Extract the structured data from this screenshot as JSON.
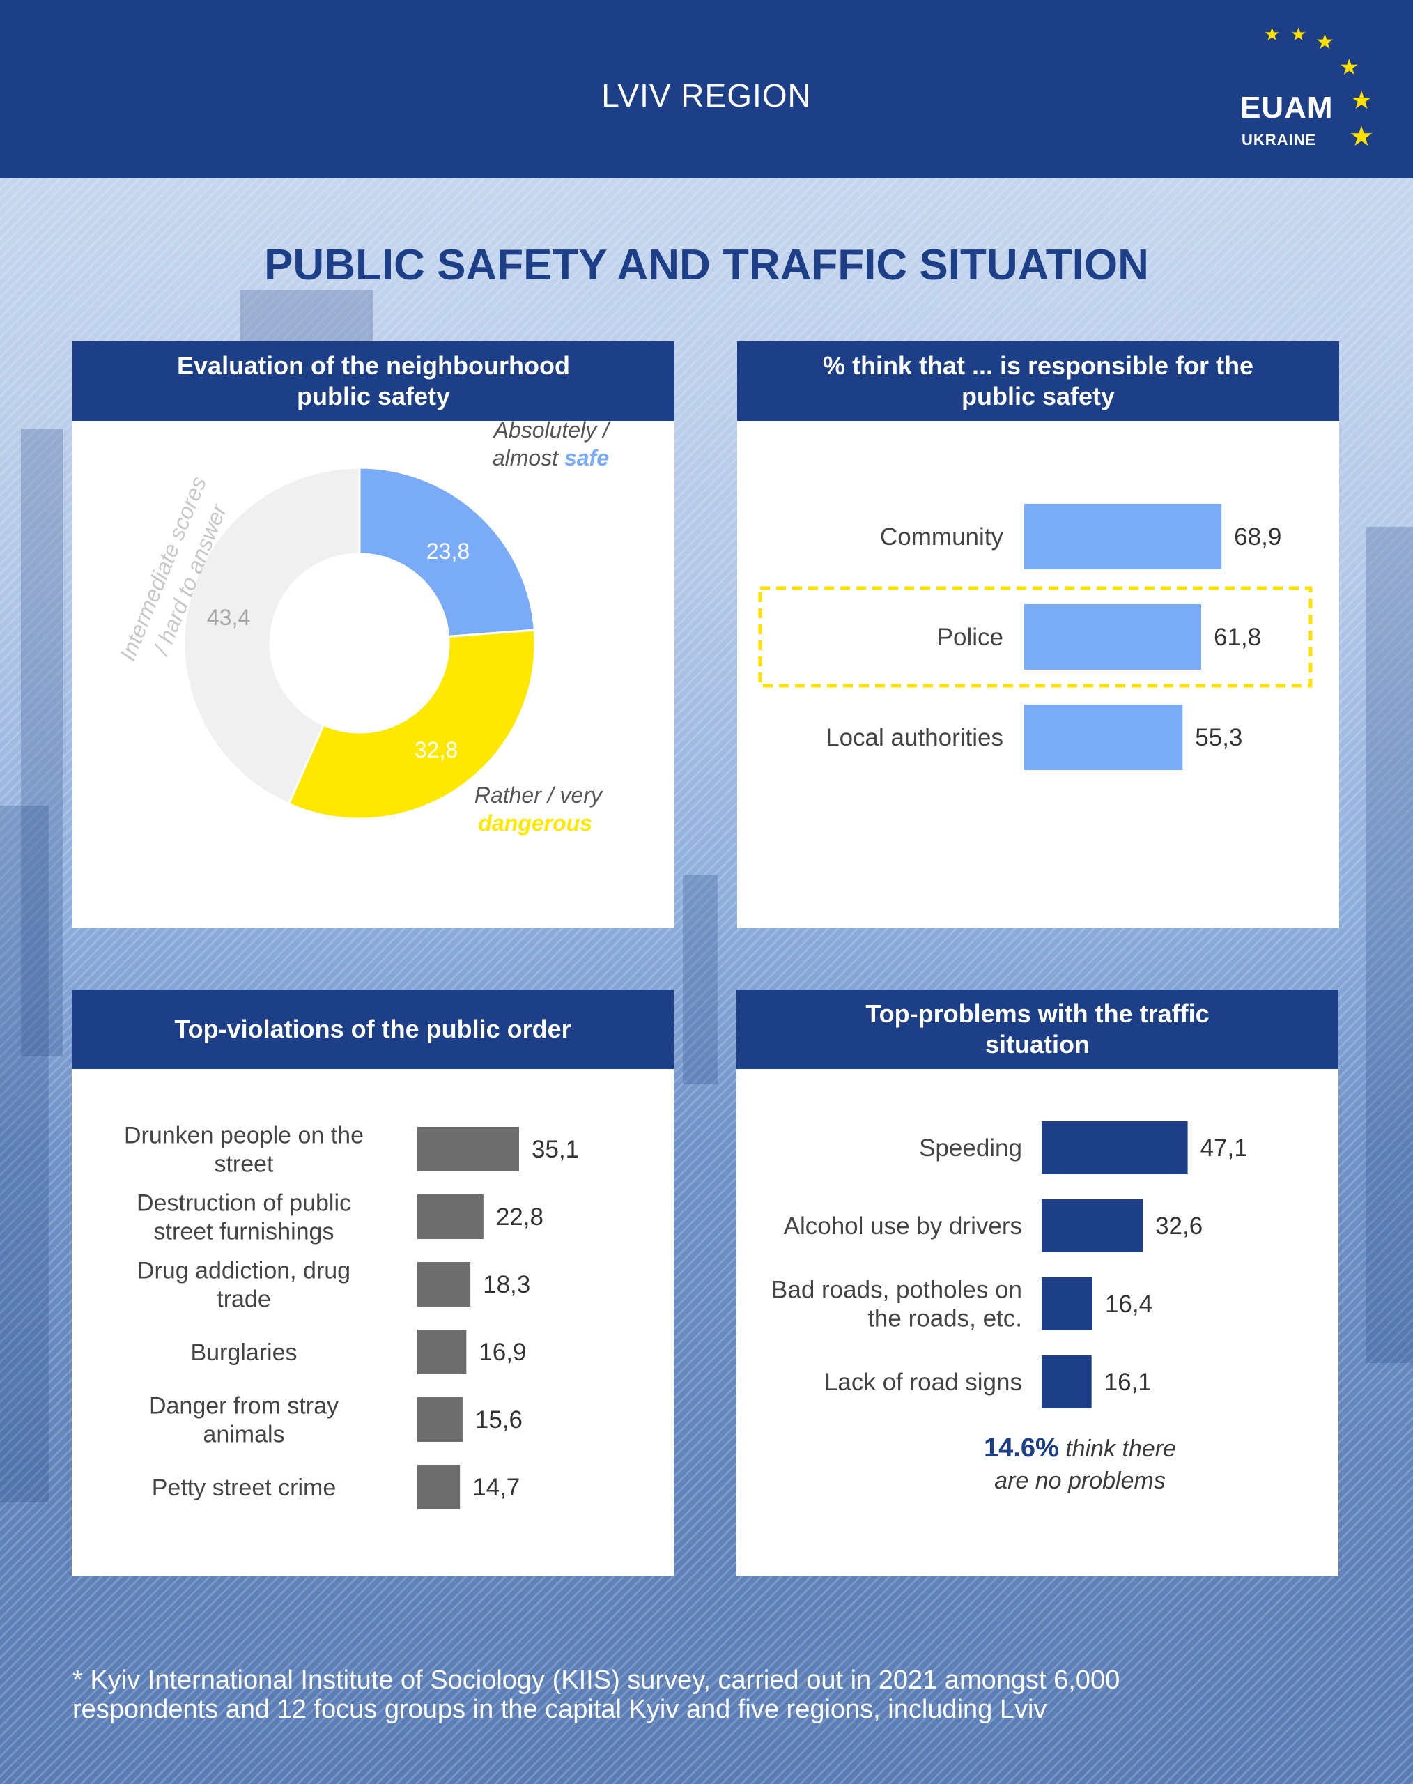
{
  "header": {
    "region": "LVIV REGION",
    "logo": {
      "brand": "EUAM",
      "sub": "UKRAINE"
    }
  },
  "title": "PUBLIC SAFETY AND TRAFFIC SITUATION",
  "colors": {
    "navy": "#1d3f87",
    "light_blue": "#7aabf7",
    "yellow": "#ffe800",
    "light_gray": "#f0f0f0",
    "gray_bar": "#6d6d6d",
    "highlight_border": "#ffe000"
  },
  "panels": {
    "safety": {
      "title_line1": "Evaluation of the neighbourhood",
      "title_line2": "public safety"
    },
    "responsible": {
      "title_line1": "% think that ... is responsible for the",
      "title_line2": "public safety"
    },
    "violations": {
      "title_line1": "Top-violations of the public order"
    },
    "traffic": {
      "title_line1": "Top-problems with the traffic",
      "title_line2": "situation"
    }
  },
  "no_problems": {
    "pct": "14.6%",
    "text1": " think there",
    "text2": "are no problems"
  },
  "footnote": {
    "line1": "* Kyiv International Institute of Sociology (KIIS) survey, carried out in 2021 amongst 6,000",
    "line2": "respondents and 12 focus groups in the capital Kyiv and five regions, including Lviv"
  },
  "chart_data": [
    {
      "type": "pie",
      "title": "Evaluation of the neighbourhood public safety",
      "slices": [
        {
          "label_lines": [
            "Absolutely /",
            "almost "
          ],
          "label_emph": "safe",
          "value": 23.8,
          "value_label": "23,8",
          "color": "#7aabf7"
        },
        {
          "label_lines": [
            "Rather / very"
          ],
          "label_emph": "dangerous",
          "value": 32.8,
          "value_label": "32,8",
          "color": "#ffe800"
        },
        {
          "label_lines": [
            "Intermediate scores",
            "/ hard to answer"
          ],
          "label_emph": "",
          "value": 43.4,
          "value_label": "43,4",
          "color": "#f0f0f0"
        }
      ]
    },
    {
      "type": "bar",
      "orientation": "horizontal",
      "title": "% think that ... is responsible for the public safety",
      "categories": [
        [
          "Community"
        ],
        [
          "Police"
        ],
        [
          "Local authorities"
        ]
      ],
      "values": [
        68.9,
        61.8,
        55.3
      ],
      "value_labels": [
        "68,9",
        "61,8",
        "55,3"
      ],
      "highlight": "Police",
      "color": "#7aabf7"
    },
    {
      "type": "bar",
      "orientation": "horizontal",
      "title": "Top-violations of the public order",
      "categories": [
        [
          "Drunken people on the",
          "street"
        ],
        [
          "Destruction of public",
          "street furnishings"
        ],
        [
          "Drug addiction, drug",
          "trade"
        ],
        [
          "Burglaries"
        ],
        [
          "Danger from stray",
          "animals"
        ],
        [
          "Petty street crime"
        ]
      ],
      "values": [
        35.1,
        22.8,
        18.3,
        16.9,
        15.6,
        14.7
      ],
      "value_labels": [
        "35,1",
        "22,8",
        "18,3",
        "16,9",
        "15,6",
        "14,7"
      ],
      "color": "#6d6d6d"
    },
    {
      "type": "bar",
      "orientation": "horizontal",
      "title": "Top-problems with the traffic situation",
      "categories": [
        [
          "Speeding"
        ],
        [
          "Alcohol use by drivers"
        ],
        [
          "Bad roads, potholes on",
          "the roads, etc."
        ],
        [
          "Lack of road signs"
        ]
      ],
      "values": [
        47.1,
        32.6,
        16.4,
        16.1
      ],
      "value_labels": [
        "47,1",
        "32,6",
        "16,4",
        "16,1"
      ],
      "color": "#1d3f87"
    }
  ]
}
